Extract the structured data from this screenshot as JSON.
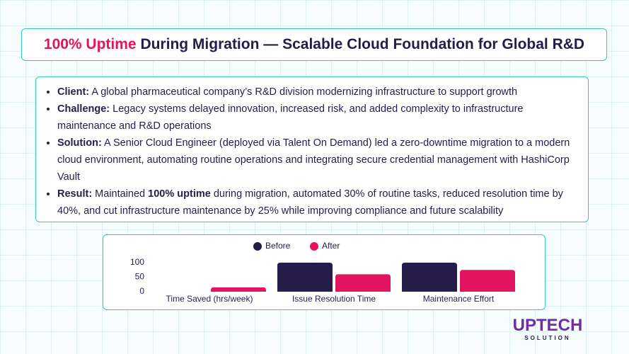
{
  "header": {
    "title_highlight": "100% Uptime",
    "title_rest": " During Migration — Scalable Cloud Foundation for Global R&D"
  },
  "bullets": [
    [
      {
        "text": "Client:",
        "bold": true
      },
      {
        "text": " A global pharmaceutical company’s R&D division modernizing infrastructure to support growth",
        "bold": false
      }
    ],
    [
      {
        "text": "Challenge:",
        "bold": true
      },
      {
        "text": " Legacy systems delayed innovation, increased risk, and added complexity to infrastructure maintenance and R&D operations",
        "bold": false
      }
    ],
    [
      {
        "text": "Solution:",
        "bold": true
      },
      {
        "text": " A Senior Cloud Engineer (deployed via Talent On Demand) led a zero-downtime migration to a modern cloud environment, automating routine operations and integrating secure credential management with HashiCorp Vault",
        "bold": false
      }
    ],
    [
      {
        "text": "Result:",
        "bold": true
      },
      {
        "text": " Maintained ",
        "bold": false
      },
      {
        "text": "100% uptime",
        "bold": true
      },
      {
        "text": " during migration, automated 30% of routine tasks, reduced resolution time by 40%, and cut infrastructure maintenance by 25% while improving compliance and future scalability",
        "bold": false
      }
    ]
  ],
  "chart_data": {
    "type": "bar",
    "categories": [
      "Time Saved (hrs/week)",
      "Issue Resolution Time",
      "Maintenance Effort"
    ],
    "series": [
      {
        "name": "Before",
        "color": "#261c4a",
        "values": [
          0,
          100,
          100
        ]
      },
      {
        "name": "After",
        "color": "#e3145f",
        "values": [
          15,
          60,
          75
        ]
      }
    ],
    "ylim": [
      0,
      100
    ],
    "yticks": [
      0,
      50,
      100
    ],
    "legend": "top"
  },
  "logo": {
    "name": "UPTECH",
    "tagline": "SOLUTION"
  }
}
